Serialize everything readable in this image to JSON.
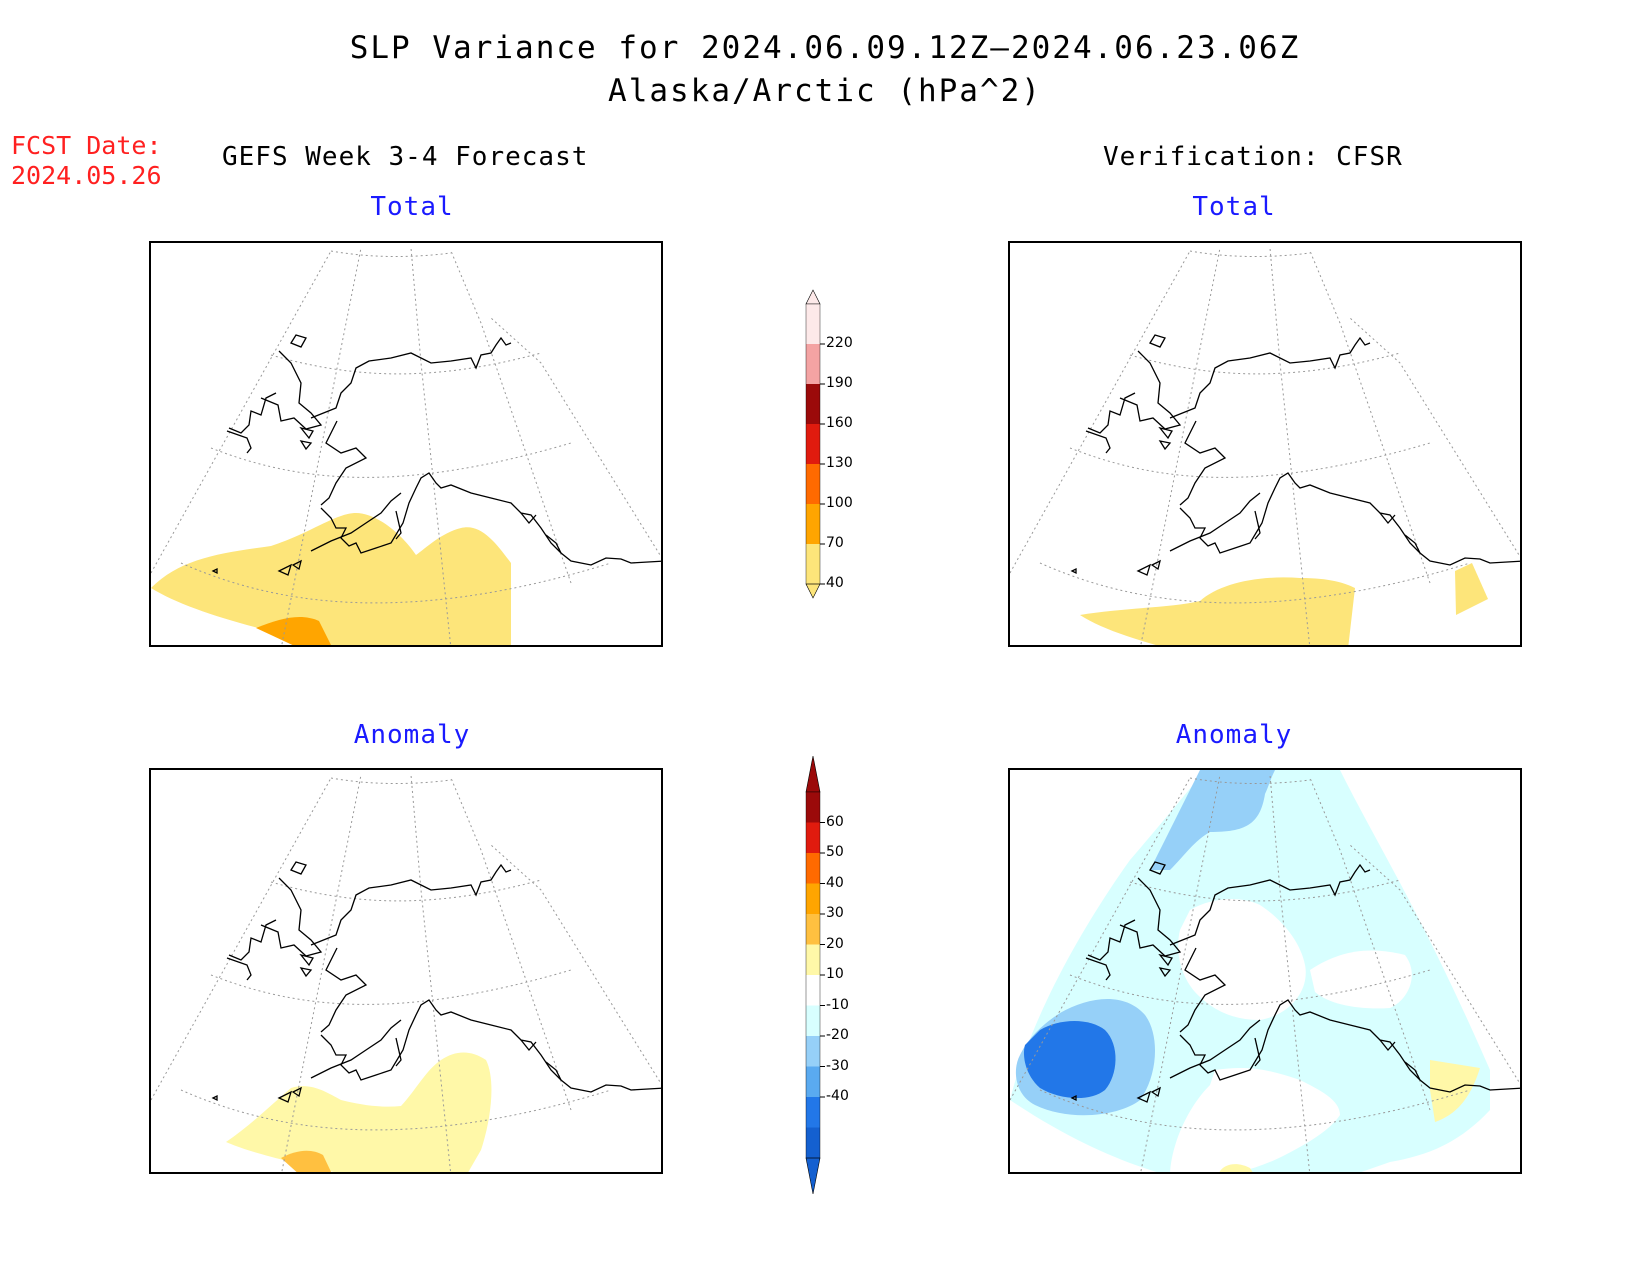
{
  "title": "SLP Variance for 2024.06.09.12Z—2024.06.23.06Z",
  "subtitle": "Alaska/Arctic (hPa^2)",
  "fcst_date": {
    "label": "FCST Date:",
    "value": "2024.05.26"
  },
  "left_column": {
    "heading": "GEFS Week 3-4 Forecast",
    "top_label": "Total",
    "bottom_label": "Anomaly"
  },
  "right_column": {
    "heading": "Verification: CFSR",
    "top_label": "Total",
    "bottom_label": "Anomaly"
  },
  "total_colorbar": {
    "tick_labels": [
      "220",
      "190",
      "160",
      "130",
      "100",
      "70",
      "40"
    ],
    "colors": [
      "#fde9e9",
      "#f4a3a3",
      "#9b0a0a",
      "#e01b0e",
      "#ff6a00",
      "#ffa500",
      "#fde57a"
    ]
  },
  "anomaly_colorbar": {
    "tick_labels": [
      "60",
      "50",
      "40",
      "30",
      "20",
      "10",
      "-10",
      "-20",
      "-30",
      "-40"
    ],
    "colors": [
      "#9b0a0a",
      "#e01b0e",
      "#ff6a00",
      "#ffa500",
      "#ffc040",
      "#fff8a8",
      "#ffffff",
      "#d8ffff",
      "#96d0f8",
      "#5aaaf0",
      "#2277e8",
      "#1460d0"
    ]
  }
}
